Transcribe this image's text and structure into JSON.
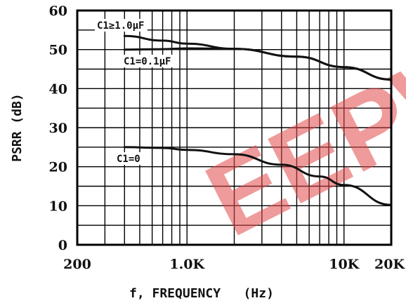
{
  "chart_data": {
    "type": "line",
    "xlabel": "f, FREQUENCY   (Hz)",
    "ylabel": "PSRR (dB)",
    "x_scale": "log",
    "xlim": [
      200,
      20000
    ],
    "ylim": [
      0,
      60
    ],
    "grid": true,
    "x_ticks": [
      {
        "value": 200,
        "label": "200"
      },
      {
        "value": 1000,
        "label": "1.0K"
      },
      {
        "value": 10000,
        "label": "10K"
      },
      {
        "value": 20000,
        "label": "20K"
      }
    ],
    "y_ticks": [
      {
        "value": 0,
        "label": "0"
      },
      {
        "value": 10,
        "label": "10"
      },
      {
        "value": 20,
        "label": "20"
      },
      {
        "value": 30,
        "label": "30"
      },
      {
        "value": 40,
        "label": "40"
      },
      {
        "value": 50,
        "label": "50"
      },
      {
        "value": 60,
        "label": "60"
      }
    ],
    "series": [
      {
        "name": "C1≥1.0μF",
        "x": [
          400,
          700,
          1000,
          2000,
          5000,
          10000,
          20000
        ],
        "y": [
          53.5,
          52.3,
          51.5,
          50.2,
          48.2,
          45.5,
          42.3
        ]
      },
      {
        "name": "C1=0.1μF",
        "x": [
          400,
          700,
          1000,
          2000,
          5000,
          10000,
          20000
        ],
        "y": [
          50,
          50.1,
          50.3,
          50.2,
          48.2,
          45.5,
          42.3
        ]
      },
      {
        "name": "C1=0",
        "x": [
          400,
          700,
          1000,
          2000,
          4000,
          7000,
          10000,
          20000
        ],
        "y": [
          25,
          24.8,
          24.3,
          23.2,
          20.5,
          17.5,
          15.3,
          10.2
        ]
      }
    ],
    "watermark": {
      "text": "EEPW",
      "color": "#e24a4a"
    }
  }
}
